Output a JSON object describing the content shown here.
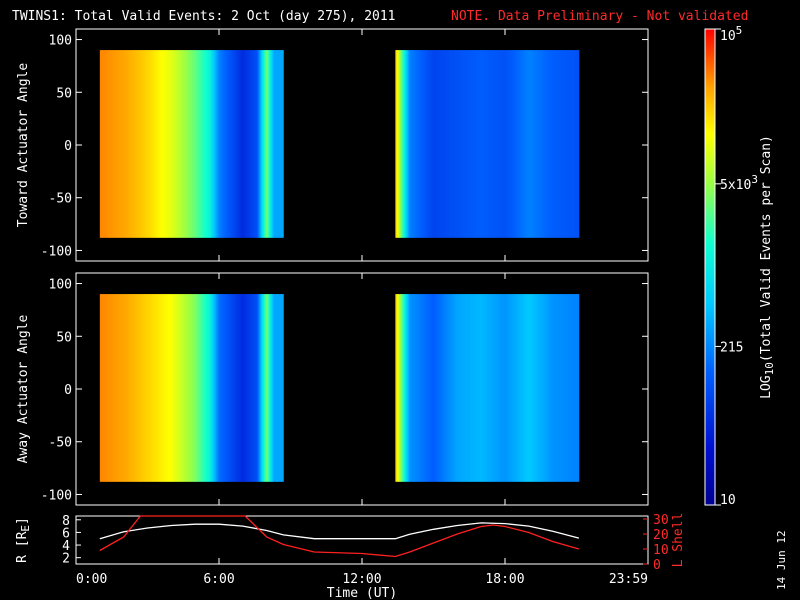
{
  "header": {
    "title": "TWINS1: Total Valid Events:  2 Oct (day 275), 2011",
    "note": "NOTE. Data Preliminary - Not validated"
  },
  "footer": {
    "date_stamp": "14 Jun 12"
  },
  "colors": {
    "background": "#000000",
    "axes": "#ffffff",
    "note_text": "#ff2020",
    "l_shell_line": "#ff2020",
    "r_line": "#ffffff"
  },
  "chart_data": [
    {
      "type": "heatmap",
      "title": "",
      "ylabel": "Toward Actuator Angle",
      "xlabel": "",
      "xlim": [
        0,
        24
      ],
      "ylim": [
        -110,
        110
      ],
      "yticks": [
        100,
        50,
        0,
        -50,
        -100
      ],
      "data_range_y": [
        -88,
        90
      ],
      "coverage_hours": [
        [
          1.0,
          8.7
        ],
        [
          13.4,
          21.1
        ]
      ],
      "log10_events_by_hour": [
        [
          1.0,
          4.6
        ],
        [
          2.0,
          4.5
        ],
        [
          3.0,
          4.3
        ],
        [
          4.0,
          4.0
        ],
        [
          5.0,
          3.5
        ],
        [
          5.6,
          3.1
        ],
        [
          6.0,
          2.3
        ],
        [
          7.0,
          1.7
        ],
        [
          7.6,
          2.0
        ],
        [
          8.0,
          3.6
        ],
        [
          8.3,
          2.5
        ],
        [
          8.7,
          2.5
        ],
        [
          13.4,
          4.4
        ],
        [
          14.0,
          2.3
        ],
        [
          15.0,
          1.9
        ],
        [
          16.0,
          2.0
        ],
        [
          17.0,
          2.1
        ],
        [
          18.0,
          2.0
        ],
        [
          19.0,
          2.3
        ],
        [
          20.0,
          2.1
        ],
        [
          21.1,
          2.0
        ]
      ]
    },
    {
      "type": "heatmap",
      "title": "",
      "ylabel": "Away Actuator Angle",
      "xlabel": "",
      "xlim": [
        0,
        24
      ],
      "ylim": [
        -110,
        110
      ],
      "yticks": [
        100,
        50,
        0,
        -50,
        -100
      ],
      "data_range_y": [
        -88,
        90
      ],
      "coverage_hours": [
        [
          1.0,
          8.7
        ],
        [
          13.4,
          21.1
        ]
      ],
      "log10_events_by_hour": [
        [
          1.0,
          4.6
        ],
        [
          2.0,
          4.5
        ],
        [
          3.0,
          4.3
        ],
        [
          4.0,
          4.1
        ],
        [
          5.0,
          3.6
        ],
        [
          5.6,
          3.1
        ],
        [
          6.0,
          2.2
        ],
        [
          7.0,
          1.7
        ],
        [
          7.6,
          2.0
        ],
        [
          8.0,
          3.6
        ],
        [
          8.3,
          2.5
        ],
        [
          8.7,
          2.5
        ],
        [
          13.4,
          4.4
        ],
        [
          14.0,
          2.4
        ],
        [
          15.0,
          2.1
        ],
        [
          16.0,
          2.5
        ],
        [
          17.0,
          2.6
        ],
        [
          18.0,
          2.4
        ],
        [
          19.0,
          2.7
        ],
        [
          20.0,
          2.4
        ],
        [
          21.1,
          2.3
        ]
      ]
    },
    {
      "type": "line",
      "title": "",
      "xlabel": "Time (UT)",
      "ylabel": "R [R",
      "ylabel_sub": "E",
      "ylabel_suffix": "]",
      "y2label": "L Shell",
      "xlim": [
        0,
        24
      ],
      "xticks": [
        "0:00",
        "6:00",
        "12:00",
        "18:00",
        "23:59"
      ],
      "xtick_hours": [
        0,
        6,
        12,
        18,
        24
      ],
      "ylim": [
        1,
        8.6
      ],
      "yticks": [
        2,
        4,
        6,
        8
      ],
      "y2lim": [
        0,
        32
      ],
      "y2ticks": [
        0,
        10,
        20,
        30
      ],
      "series": [
        {
          "name": "",
          "axis": "left",
          "x": [
            1.0,
            2.0,
            3.0,
            4.0,
            5.0,
            6.0,
            7.0,
            8.0,
            8.7,
            10.0,
            12.0,
            13.4,
            14.0,
            15.0,
            16.0,
            17.0,
            18.0,
            19.0,
            20.0,
            21.1
          ],
          "y": [
            5.0,
            6.1,
            6.7,
            7.1,
            7.3,
            7.3,
            7.0,
            6.3,
            5.6,
            5.0,
            5.0,
            5.0,
            5.7,
            6.5,
            7.1,
            7.5,
            7.4,
            7.0,
            6.2,
            5.1
          ]
        },
        {
          "name": "",
          "axis": "right",
          "x": [
            1.0,
            2.0,
            2.7,
            7.1,
            8.0,
            8.7,
            10.0,
            12.0,
            13.4,
            14.0,
            15.0,
            16.0,
            17.0,
            17.5,
            18.0,
            19.0,
            20.0,
            21.1
          ],
          "y": [
            9.0,
            18.0,
            32.0,
            32.0,
            18.0,
            13.0,
            8.0,
            7.0,
            5.0,
            8.0,
            14.0,
            20.0,
            25.0,
            26.0,
            25.0,
            21.0,
            15.0,
            10.0
          ]
        }
      ]
    }
  ],
  "colorbar": {
    "label": "LOG",
    "label_sub": "10",
    "label_suffix": "(Total Valid  Events per Scan)",
    "ticks": [
      {
        "value": 10,
        "text": "10"
      },
      {
        "value": 215,
        "text": "215"
      },
      {
        "value": 5000,
        "text": "5x10",
        "sup": "3"
      },
      {
        "value": 100000,
        "text": "10",
        "sup": "5"
      }
    ],
    "range": [
      10,
      100000
    ],
    "scale": "log"
  }
}
